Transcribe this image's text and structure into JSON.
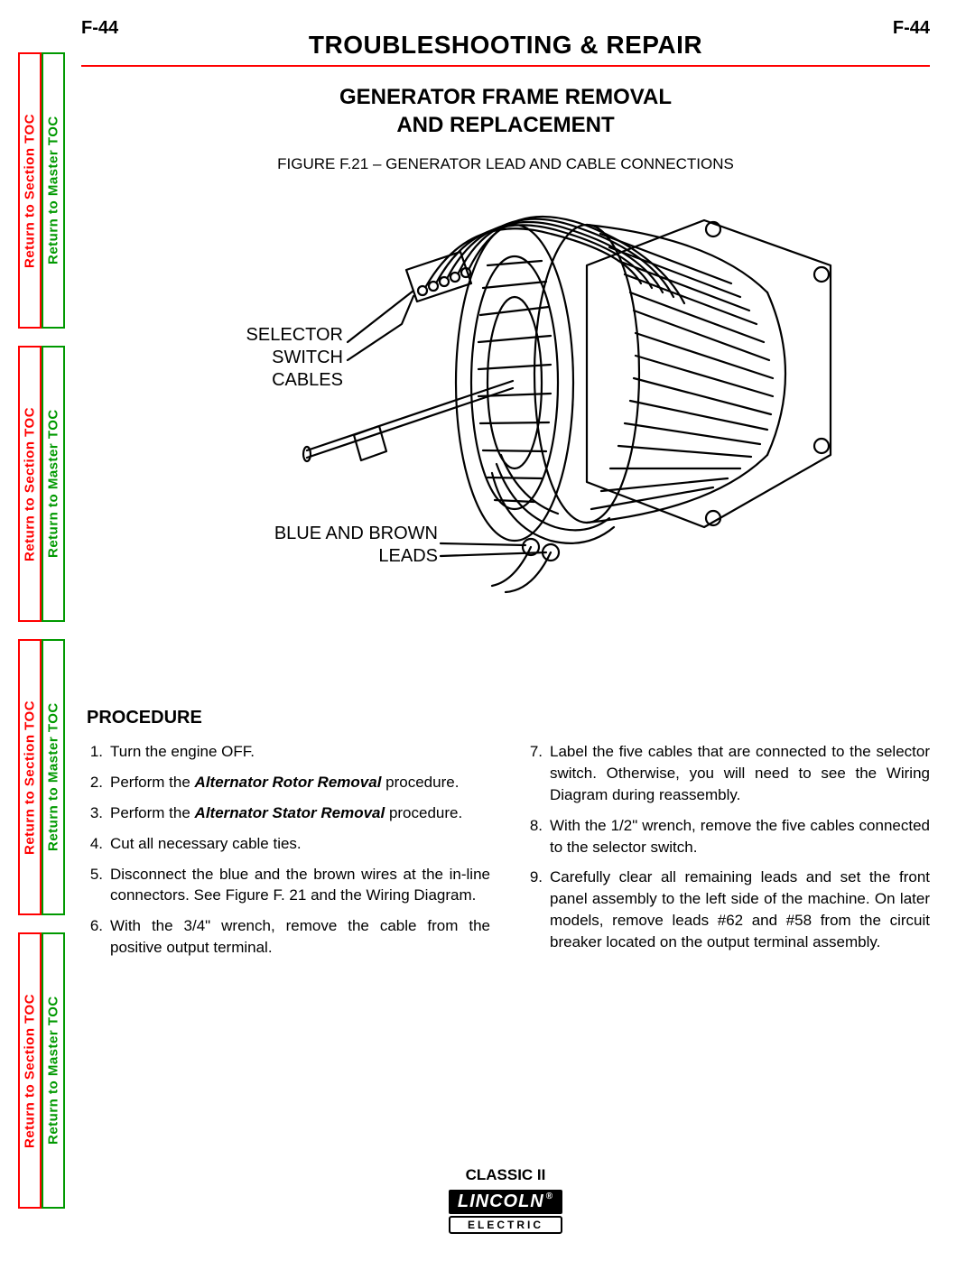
{
  "page_number_left": "F-44",
  "page_number_right": "F-44",
  "section_title": "TROUBLESHOOTING & REPAIR",
  "subtitle_line1": "GENERATOR FRAME REMOVAL",
  "subtitle_line2": "AND REPLACEMENT",
  "figure_caption": "FIGURE F.21 – GENERATOR LEAD AND CABLE CONNECTIONS",
  "figure_labels": {
    "selector": "SELECTOR SWITCH CABLES",
    "blue_brown": "BLUE AND BROWN LEADS"
  },
  "procedure_heading": "PROCEDURE",
  "procedure_left": [
    {
      "n": "1.",
      "text": "Turn the engine OFF."
    },
    {
      "n": "2.",
      "text_pre": "Perform the ",
      "emph": "Alternator Rotor Removal",
      "text_post": " procedure."
    },
    {
      "n": "3.",
      "text_pre": "Perform the ",
      "emph": "Alternator Stator Removal",
      "text_post": " procedure."
    },
    {
      "n": "4.",
      "text": "Cut all necessary cable ties."
    },
    {
      "n": "5.",
      "text": "Disconnect the blue and the brown wires at the in-line connectors.  See Figure F. 21 and the Wiring Diagram."
    },
    {
      "n": "6.",
      "text": "With the 3/4\" wrench, remove the cable from the positive output terminal."
    }
  ],
  "procedure_right": [
    {
      "n": "7.",
      "text": "Label the five cables that are connected to the selector switch.  Otherwise, you will need to see the Wiring Diagram during reassembly."
    },
    {
      "n": "8.",
      "text": "With the 1/2\" wrench, remove the five cables connected to the selector switch."
    },
    {
      "n": "9.",
      "text": "Carefully clear all remaining leads and set the front panel assembly to the left side of the machine.  On later models, remove leads #62 and #58 from the circuit breaker located on the output terminal assembly."
    }
  ],
  "sidebar": {
    "section_label": "Return to Section TOC",
    "master_label": "Return to Master TOC",
    "section_color": "#ff0000",
    "master_color": "#009900"
  },
  "footer": {
    "model": "CLASSIC II",
    "logo_top": "LINCOLN",
    "logo_reg": "®",
    "logo_bottom": "ELECTRIC"
  },
  "colors": {
    "rule": "#ff0000",
    "text": "#000000",
    "background": "#ffffff"
  },
  "figure_svg": {
    "stroke": "#000000",
    "stroke_width": 2,
    "fill": "#ffffff"
  }
}
